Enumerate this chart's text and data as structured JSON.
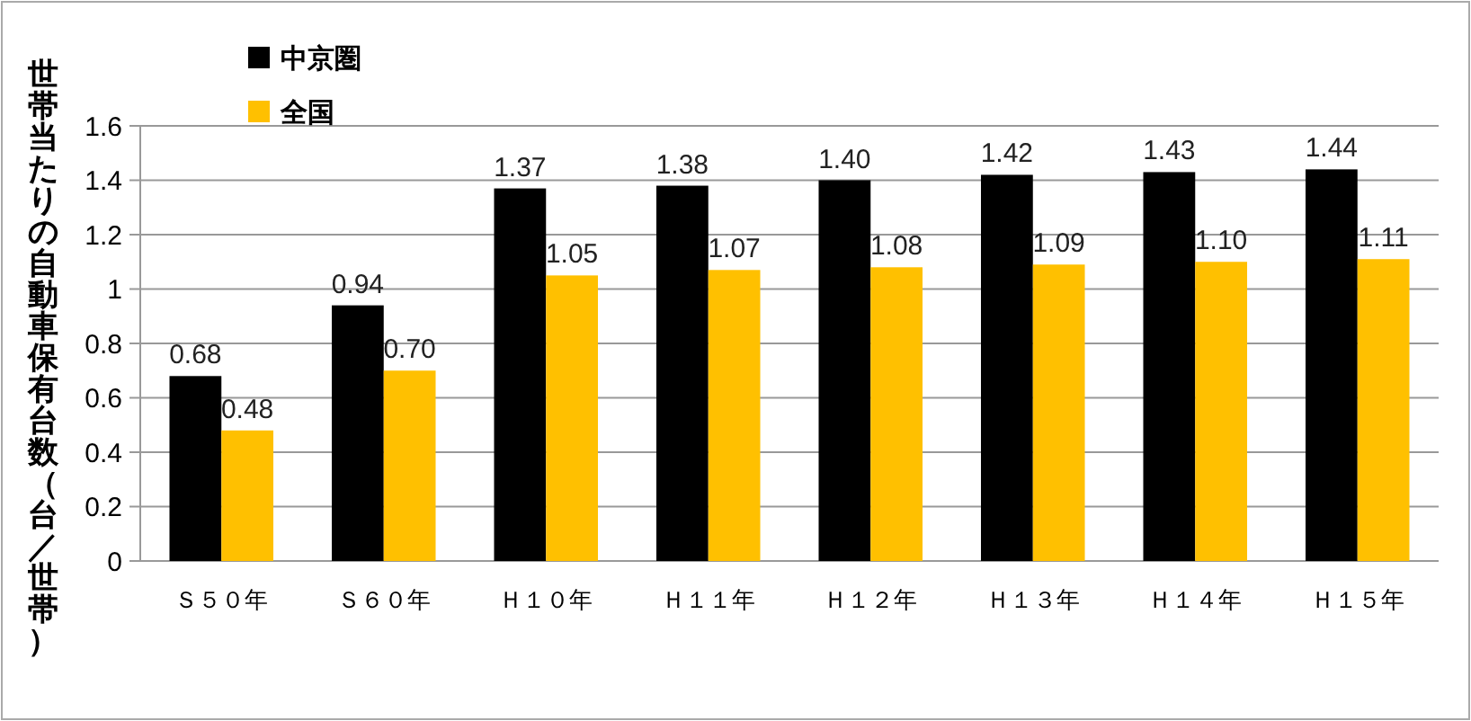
{
  "chart_data": {
    "type": "bar",
    "ylabel": "世帯当たりの自動車保有台数（台／世帯）",
    "categories": [
      "Ｓ５０年",
      "Ｓ６０年",
      "Ｈ１０年",
      "Ｈ１１年",
      "Ｈ１２年",
      "Ｈ１３年",
      "Ｈ１４年",
      "Ｈ１５年"
    ],
    "series": [
      {
        "name": "中京圏",
        "color": "#000000",
        "values": [
          0.68,
          0.94,
          1.37,
          1.38,
          1.4,
          1.42,
          1.43,
          1.44
        ],
        "value_labels": [
          "0.68",
          "0.94",
          "1.37",
          "1.38",
          "1.40",
          "1.42",
          "1.43",
          "1.44"
        ]
      },
      {
        "name": "全国",
        "color": "#ffc000",
        "values": [
          0.48,
          0.7,
          1.05,
          1.07,
          1.08,
          1.09,
          1.1,
          1.11
        ],
        "value_labels": [
          "0.48",
          "0.70",
          "1.05",
          "1.07",
          "1.08",
          "1.09",
          "1.10",
          "1.11"
        ]
      }
    ],
    "ylim": [
      0,
      1.6
    ],
    "yticks": [
      0,
      0.2,
      0.4,
      0.6,
      0.8,
      1,
      1.2,
      1.4,
      1.6
    ],
    "grid": "y",
    "legend": "top left"
  }
}
